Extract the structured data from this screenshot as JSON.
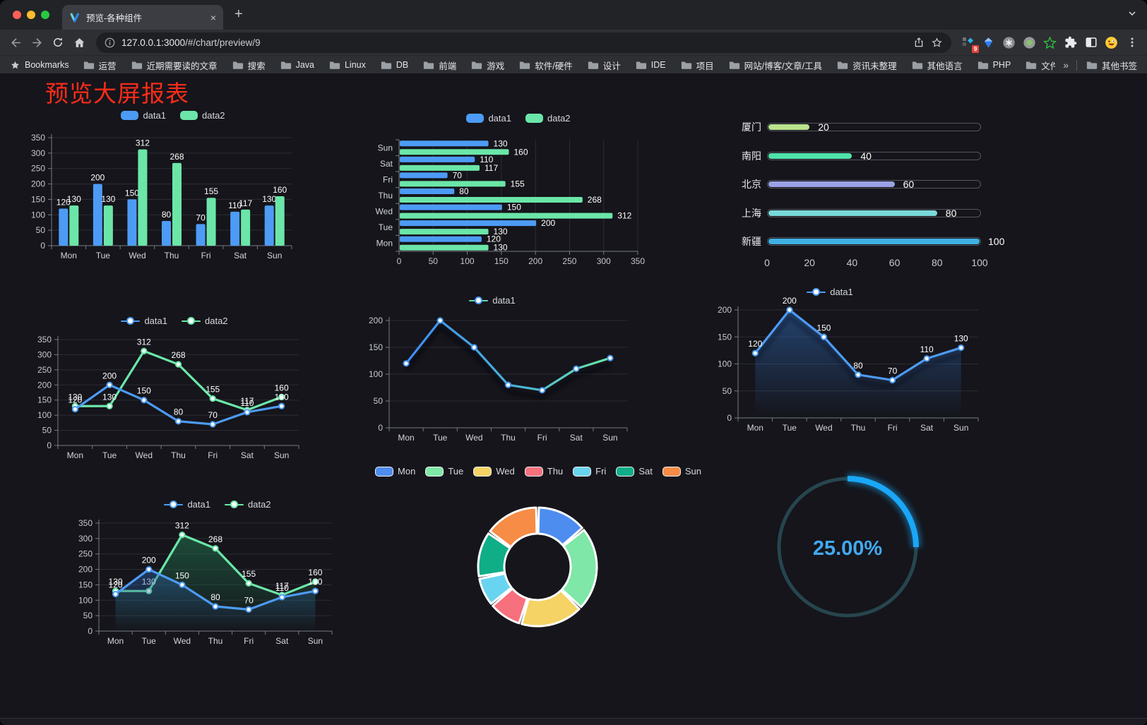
{
  "browser": {
    "tab": {
      "title": "预览-各种组件",
      "close": "×",
      "new_tab": "+"
    },
    "url": {
      "host": "127.0.0.1:3000",
      "path": "/#/chart/preview/9"
    },
    "bookmarks_label": "Bookmarks",
    "bookmark_folders": [
      "运营",
      "近期需要读的文章",
      "搜索",
      "Java",
      "Linux",
      "DB",
      "前端",
      "游戏",
      "软件/硬件",
      "设计",
      "IDE",
      "项目",
      "网站/博客/文章/工具",
      "资讯未整理",
      "其他语言",
      "PHP",
      "文件服务器"
    ],
    "bookmarks_overflow": "»",
    "other_bookmarks": "其他书签",
    "extension_badge": "9",
    "toolbar_icons": [
      "back",
      "forward",
      "reload",
      "home",
      "site-info",
      "share",
      "bookmark-star"
    ],
    "extension_icons": [
      "proxy-grid",
      "blue-gem",
      "asterisk-circle",
      "green-dot-circle",
      "green-star",
      "puzzle",
      "split-square",
      "emoji-face"
    ],
    "menu_icon": "kebab-menu"
  },
  "page": {
    "title": "预览大屏报表",
    "title_color": "#fa2c19"
  },
  "chart_data": [
    {
      "id": "grouped-bar",
      "type": "bar",
      "categories": [
        "Mon",
        "Tue",
        "Wed",
        "Thu",
        "Fri",
        "Sat",
        "Sun"
      ],
      "series": [
        {
          "name": "data1",
          "color": "#4d9bf5",
          "values": [
            120,
            200,
            150,
            80,
            70,
            110,
            130
          ]
        },
        {
          "name": "data2",
          "color": "#6be6a8",
          "values": [
            130,
            130,
            312,
            268,
            155,
            117,
            160
          ]
        }
      ],
      "ylim": [
        0,
        350
      ],
      "ytick": 50,
      "grid": true,
      "legend_position": "top",
      "labels": true
    },
    {
      "id": "horizontal-bar",
      "type": "bar",
      "orientation": "horizontal",
      "categories": [
        "Mon",
        "Tue",
        "Wed",
        "Thu",
        "Fri",
        "Sat",
        "Sun"
      ],
      "series": [
        {
          "name": "data1",
          "color": "#4d9bf5",
          "values": [
            120,
            200,
            150,
            80,
            70,
            110,
            130
          ]
        },
        {
          "name": "data2",
          "color": "#6be6a8",
          "values": [
            130,
            130,
            312,
            268,
            155,
            117,
            160
          ]
        }
      ],
      "xlim": [
        0,
        350
      ],
      "xtick": 50,
      "grid": true,
      "legend_position": "top",
      "labels": true
    },
    {
      "id": "capsule-progress",
      "type": "bar",
      "style": "capsule",
      "items": [
        {
          "label": "厦门",
          "value": 20,
          "color": "#b9e38d"
        },
        {
          "label": "南阳",
          "value": 40,
          "color": "#4fe2ab"
        },
        {
          "label": "北京",
          "value": 60,
          "color": "#9aa1e6"
        },
        {
          "label": "上海",
          "value": 80,
          "color": "#79d8d8"
        },
        {
          "label": "新疆",
          "value": 100,
          "color": "#3fb1e3"
        }
      ],
      "xlim": [
        0,
        100
      ],
      "xticks": [
        0,
        20,
        40,
        60,
        80,
        100
      ]
    },
    {
      "id": "dual-line",
      "type": "line",
      "categories": [
        "Mon",
        "Tue",
        "Wed",
        "Thu",
        "Fri",
        "Sat",
        "Sun"
      ],
      "series": [
        {
          "name": "data1",
          "color": "#4d9bf5",
          "values": [
            120,
            200,
            150,
            80,
            70,
            110,
            130
          ]
        },
        {
          "name": "data2",
          "color": "#6be6a8",
          "values": [
            130,
            130,
            312,
            268,
            155,
            117,
            160
          ]
        }
      ],
      "ylim": [
        0,
        350
      ],
      "ytick": 50,
      "labels": true,
      "legend_position": "top"
    },
    {
      "id": "gradient-line-shadow",
      "type": "line",
      "categories": [
        "Mon",
        "Tue",
        "Wed",
        "Thu",
        "Fri",
        "Sat",
        "Sun"
      ],
      "series": [
        {
          "name": "data1",
          "color_start": "#3d8bf2",
          "color_end": "#67e6a4",
          "values": [
            120,
            200,
            150,
            80,
            70,
            110,
            130
          ]
        }
      ],
      "ylim": [
        0,
        200
      ],
      "ytick": 50,
      "labels": false,
      "shadow": true,
      "legend_position": "top"
    },
    {
      "id": "area-line",
      "type": "area",
      "categories": [
        "Mon",
        "Tue",
        "Wed",
        "Thu",
        "Fri",
        "Sat",
        "Sun"
      ],
      "series": [
        {
          "name": "data1",
          "color": "#4d9bf5",
          "values": [
            120,
            200,
            150,
            80,
            70,
            110,
            130
          ]
        }
      ],
      "ylim": [
        0,
        200
      ],
      "ytick": 50,
      "labels": true,
      "legend_position": "top"
    },
    {
      "id": "dual-area-line",
      "type": "area",
      "categories": [
        "Mon",
        "Tue",
        "Wed",
        "Thu",
        "Fri",
        "Sat",
        "Sun"
      ],
      "series": [
        {
          "name": "data1",
          "color": "#4d9bf5",
          "values": [
            120,
            200,
            150,
            80,
            70,
            110,
            130
          ]
        },
        {
          "name": "data2",
          "color": "#6be6a8",
          "values": [
            130,
            130,
            312,
            268,
            155,
            117,
            160
          ]
        }
      ],
      "ylim": [
        0,
        350
      ],
      "ytick": 50,
      "labels": true,
      "legend_position": "top"
    },
    {
      "id": "donut",
      "type": "pie",
      "inner_radius_ratio": 0.56,
      "slices": [
        {
          "label": "Mon",
          "value": 120,
          "color": "#4d8df0"
        },
        {
          "label": "Tue",
          "value": 200,
          "color": "#7fe7a8"
        },
        {
          "label": "Wed",
          "value": 150,
          "color": "#f5d364"
        },
        {
          "label": "Thu",
          "value": 80,
          "color": "#f7707e"
        },
        {
          "label": "Fri",
          "value": 70,
          "color": "#69d4f0"
        },
        {
          "label": "Sat",
          "value": 110,
          "color": "#10ae87"
        },
        {
          "label": "Sun",
          "value": 130,
          "color": "#f78c46"
        }
      ],
      "legend_position": "top"
    },
    {
      "id": "gauge",
      "type": "gauge",
      "value": 25,
      "display": "25.00%",
      "progress_color": "#1aa7f7",
      "track_color": "#27454e",
      "text_color": "#41a9f1"
    }
  ]
}
